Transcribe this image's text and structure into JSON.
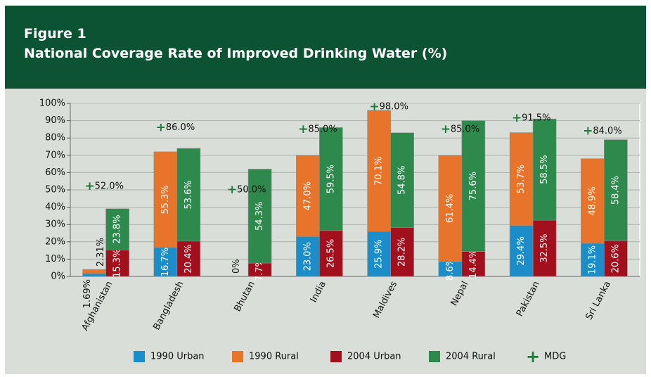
{
  "chart_data": {
    "type": "stacked_bar",
    "figure": "Figure 1",
    "title": "National Coverage Rate of Improved Drinking Water (%)",
    "categories": [
      "Afghanistan",
      "Bangladesh",
      "Bhutan",
      "India",
      "Maldives",
      "Nepal",
      "Pakistan",
      "Sri Lanka"
    ],
    "ylim": [
      0,
      100
    ],
    "yticks": [
      {
        "value": 0,
        "label": "0%"
      },
      {
        "value": 10,
        "label": "10%"
      },
      {
        "value": 20,
        "label": "20%"
      },
      {
        "value": 30,
        "label": "30%"
      },
      {
        "value": 40,
        "label": "40%"
      },
      {
        "value": 50,
        "label": "50%"
      },
      {
        "value": 60,
        "label": "60%"
      },
      {
        "value": 70,
        "label": "70%"
      },
      {
        "value": 80,
        "label": "80%"
      },
      {
        "value": 90,
        "label": "90%"
      },
      {
        "value": 100,
        "label": "100%"
      }
    ],
    "grid": true,
    "series": [
      {
        "name": "1990 Urban",
        "color": "#1b8ec9",
        "stack": "1990",
        "values": [
          1.69,
          16.7,
          0,
          23.0,
          25.9,
          8.6,
          29.4,
          19.1
        ],
        "value_labels": [
          "1.69%",
          "16.7%",
          "0%",
          "23.0%",
          "25.9%",
          "8.6%",
          "29.4%",
          "19.1%"
        ]
      },
      {
        "name": "1990 Rural",
        "color": "#e8732b",
        "stack": "1990",
        "values": [
          2.31,
          55.3,
          null,
          47.0,
          70.1,
          61.4,
          53.7,
          48.9
        ],
        "value_labels": [
          "2.31%",
          "55.3%",
          null,
          "47.0%",
          "70.1%",
          "61.4%",
          "53.7%",
          "48.9%"
        ]
      },
      {
        "name": "2004 Urban",
        "color": "#a3101d",
        "stack": "2004",
        "values": [
          15.3,
          20.4,
          7.7,
          26.5,
          28.2,
          14.4,
          32.5,
          20.6
        ],
        "value_labels": [
          "15.3%",
          "20.4%",
          "7.7%",
          "26.5%",
          "28.2%",
          "14.4%",
          "32.5%",
          "20.6%"
        ]
      },
      {
        "name": "2004 Rural",
        "color": "#2d8a4c",
        "stack": "2004",
        "values": [
          23.8,
          53.6,
          54.3,
          59.5,
          54.8,
          75.6,
          58.5,
          58.4
        ],
        "value_labels": [
          "23.8%",
          "53.6%",
          "54.3%",
          "59.5%",
          "54.8%",
          "75.6%",
          "58.5%",
          "58.4%"
        ]
      },
      {
        "name": "MDG",
        "color": "#1f7a3c",
        "marker": "+",
        "values": [
          52.0,
          86.0,
          50.0,
          85.0,
          98.0,
          85.0,
          91.5,
          84.0
        ],
        "value_labels": [
          "52.0%",
          "86.0%",
          "50.0%",
          "85.0%",
          "98.0%",
          "85.0%",
          "91.5%",
          "84.0%"
        ]
      }
    ]
  }
}
